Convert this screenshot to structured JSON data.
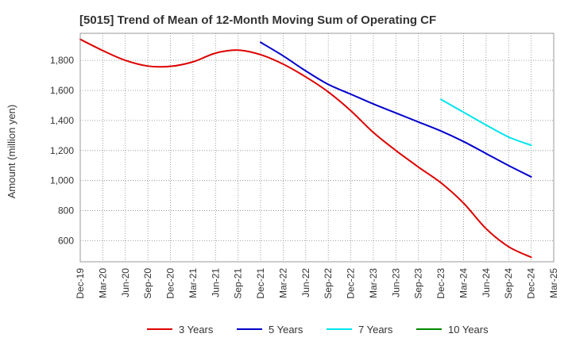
{
  "chart_data": {
    "type": "line",
    "title": "[5015]  Trend of Mean of 12-Month Moving Sum of Operating CF",
    "xlabel": "",
    "ylabel": "Amount (million yen)",
    "ylim": [
      460,
      1980
    ],
    "yticks": [
      600,
      800,
      1000,
      1200,
      1400,
      1600,
      1800
    ],
    "ytick_labels": [
      "600",
      "800",
      "1,000",
      "1,200",
      "1,400",
      "1,600",
      "1,800"
    ],
    "categories": [
      "Dec-19",
      "Mar-20",
      "Jun-20",
      "Sep-20",
      "Dec-20",
      "Mar-21",
      "Jun-21",
      "Sep-21",
      "Dec-21",
      "Mar-22",
      "Jun-22",
      "Sep-22",
      "Dec-22",
      "Mar-23",
      "Jun-23",
      "Sep-23",
      "Dec-23",
      "Mar-24",
      "Jun-24",
      "Sep-24",
      "Dec-24",
      "Mar-25"
    ],
    "grid": true,
    "legend_position": "bottom",
    "series": [
      {
        "name": "3 Years",
        "color": "#dd0000",
        "values": [
          1940,
          1865,
          1800,
          1762,
          1760,
          1790,
          1848,
          1868,
          1838,
          1775,
          1690,
          1590,
          1465,
          1320,
          1200,
          1090,
          985,
          850,
          680,
          560,
          490,
          null
        ]
      },
      {
        "name": "5 Years",
        "color": "#0000cc",
        "values": [
          null,
          null,
          null,
          null,
          null,
          null,
          null,
          null,
          1920,
          1830,
          1730,
          1640,
          1575,
          1510,
          1450,
          1390,
          1330,
          1260,
          1180,
          1100,
          1025,
          null
        ]
      },
      {
        "name": "7 Years",
        "color": "#00e5ee",
        "values": [
          null,
          null,
          null,
          null,
          null,
          null,
          null,
          null,
          null,
          null,
          null,
          null,
          null,
          null,
          null,
          null,
          1540,
          1455,
          1370,
          1290,
          1235,
          null
        ]
      },
      {
        "name": "10 Years",
        "color": "#008800",
        "values": [
          null,
          null,
          null,
          null,
          null,
          null,
          null,
          null,
          null,
          null,
          null,
          null,
          null,
          null,
          null,
          null,
          null,
          null,
          null,
          null,
          null,
          null
        ]
      }
    ]
  }
}
